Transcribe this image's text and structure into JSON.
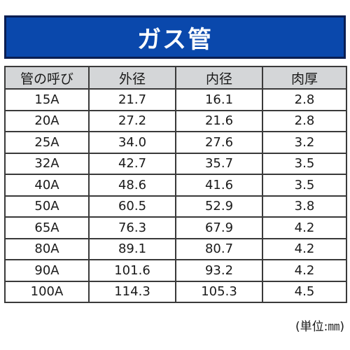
{
  "title": "ガス管",
  "table": {
    "headers": [
      "管の呼び",
      "外径",
      "内径",
      "肉厚"
    ],
    "rows": [
      [
        "15A",
        "21.7",
        "16.1",
        "2.8"
      ],
      [
        "20A",
        "27.2",
        "21.6",
        "2.8"
      ],
      [
        "25A",
        "34.0",
        "27.6",
        "3.2"
      ],
      [
        "32A",
        "42.7",
        "35.7",
        "3.5"
      ],
      [
        "40A",
        "48.6",
        "41.6",
        "3.5"
      ],
      [
        "50A",
        "60.5",
        "52.9",
        "3.8"
      ],
      [
        "65A",
        "76.3",
        "67.9",
        "4.2"
      ],
      [
        "80A",
        "89.1",
        "80.7",
        "4.2"
      ],
      [
        "90A",
        "101.6",
        "93.2",
        "4.2"
      ],
      [
        "100A",
        "114.3",
        "105.3",
        "4.5"
      ]
    ]
  },
  "unit_note": "(単位:㎜)",
  "colors": {
    "banner_background": "#0a48ac",
    "banner_border": "#0a1e52",
    "header_background": "#d4d6d8",
    "grid_lines": "#3a3a3a"
  }
}
